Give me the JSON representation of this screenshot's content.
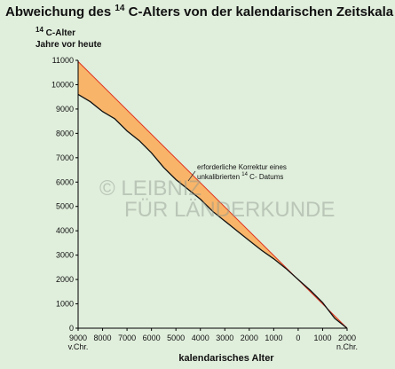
{
  "chart_data": {
    "type": "line",
    "title": {
      "before": "Abweichung des ",
      "sup": "14",
      "after": " C-Alters von der kalendarischen Zeitskala"
    },
    "y_label": {
      "sup": "14",
      "line1": " C-Alter",
      "line2": "Jahre vor heute"
    },
    "x_label": "kalendarisches Alter",
    "x_era_labels": [
      "v.Chr.",
      "n.Chr."
    ],
    "watermark": [
      "© LEIBNIZ",
      "FÜR LÄNDERKUNDE"
    ],
    "annotation": {
      "line1": "erforderliche Korrektur eines",
      "line2_before": "unkalibrierten ",
      "line2_sup": "14",
      "line2_after": " C- Datums"
    },
    "xlim": [
      -9000,
      2000
    ],
    "ylim": [
      0,
      11000
    ],
    "xticks": [
      {
        "value": -9000,
        "label": "9000"
      },
      {
        "value": -8000,
        "label": "8000"
      },
      {
        "value": -7000,
        "label": "7000"
      },
      {
        "value": -6000,
        "label": "6000"
      },
      {
        "value": -5000,
        "label": "5000"
      },
      {
        "value": -4000,
        "label": "4000"
      },
      {
        "value": -3000,
        "label": "3000"
      },
      {
        "value": -2000,
        "label": "2000"
      },
      {
        "value": -1000,
        "label": "1000"
      },
      0,
      1000,
      2000
    ],
    "yticks": [
      0,
      1000,
      2000,
      3000,
      4000,
      5000,
      6000,
      7000,
      8000,
      9000,
      10000,
      11000
    ],
    "fill_color": "#f8b56a",
    "series": [
      {
        "color": "#e0301e",
        "x": [
          -9000,
          2000
        ],
        "values": [
          10950,
          0
        ]
      },
      {
        "color": "#111111",
        "x": [
          -9000,
          -8500,
          -8000,
          -7500,
          -7000,
          -6500,
          -6000,
          -5500,
          -5000,
          -4500,
          -4000,
          -3500,
          -3000,
          -2500,
          -2000,
          -1500,
          -1000,
          -500,
          0,
          500,
          1000,
          1500,
          2000
        ],
        "values": [
          9600,
          9300,
          8900,
          8600,
          8100,
          7700,
          7200,
          6600,
          6100,
          5700,
          5300,
          4800,
          4400,
          4000,
          3600,
          3200,
          2850,
          2450,
          2000,
          1550,
          1050,
          400,
          0
        ]
      }
    ]
  }
}
